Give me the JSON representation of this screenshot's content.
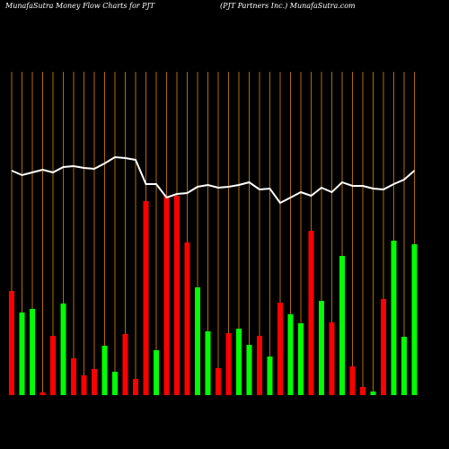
{
  "chart_data": {
    "type": "bar",
    "title": "MunafaSutra  Money Flow  Charts for PJT",
    "subtitle": "(PJT Partners Inc.) MunafaSutra.com",
    "values": [
      116,
      92,
      96,
      3,
      66,
      102,
      41,
      22,
      29,
      55,
      26,
      68,
      18,
      216,
      50,
      222,
      222,
      170,
      120,
      71,
      30,
      69,
      74,
      56,
      66,
      43,
      103,
      90,
      80,
      183,
      105,
      81,
      155,
      32,
      9,
      4,
      107,
      172,
      65,
      168
    ],
    "colors": [
      "#ff0000",
      "#00ff00",
      "#00ff00",
      "#ff0000",
      "#ff0000",
      "#00ff00",
      "#ff0000",
      "#ff0000",
      "#ff0000",
      "#00ff00",
      "#00ff00",
      "#ff0000",
      "#ff0000",
      "#ff0000",
      "#00ff00",
      "#ff0000",
      "#ff0000",
      "#ff0000",
      "#00ff00",
      "#00ff00",
      "#ff0000",
      "#ff0000",
      "#00ff00",
      "#00ff00",
      "#ff0000",
      "#00ff00",
      "#ff0000",
      "#00ff00",
      "#00ff00",
      "#ff0000",
      "#00ff00",
      "#ff0000",
      "#00ff00",
      "#ff0000",
      "#ff0000",
      "#00ff00",
      "#ff0000",
      "#00ff00",
      "#00ff00",
      "#00ff00"
    ],
    "line": {
      "color": "#ffffff",
      "values": [
        250,
        245,
        248,
        251,
        248,
        254,
        255,
        253,
        252,
        258,
        265,
        264,
        262,
        235,
        235,
        220,
        224,
        225,
        232,
        234,
        231,
        232,
        234,
        237,
        229,
        230,
        214,
        220,
        226,
        222,
        231,
        226,
        237,
        233,
        233,
        230,
        229,
        235,
        240,
        250
      ]
    },
    "grid_color": "#b36b00"
  }
}
